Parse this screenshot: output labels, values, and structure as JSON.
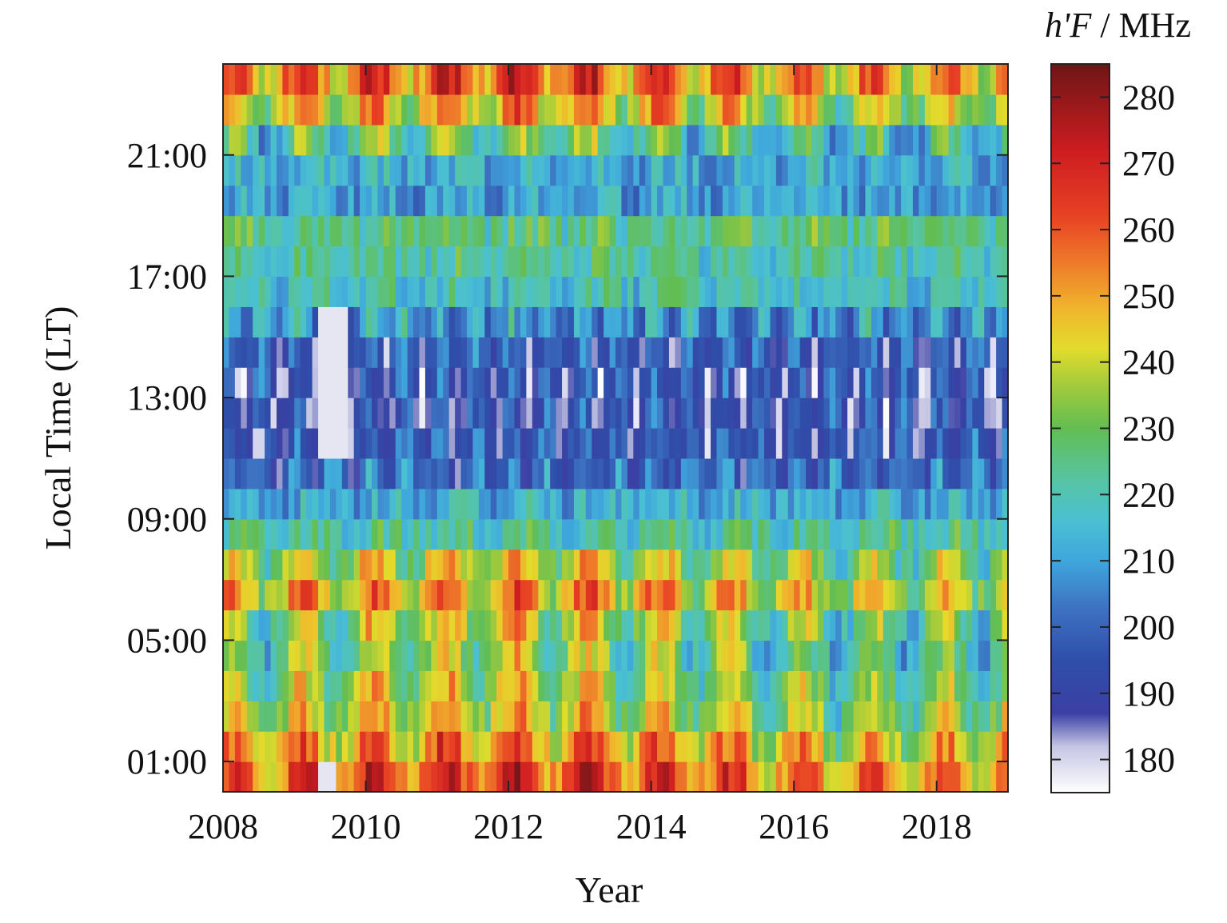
{
  "chart_data": {
    "type": "heatmap",
    "title": "",
    "xlabel": "Year",
    "ylabel": "Local Time (LT)",
    "colorbar_label": {
      "symbol": "h'F",
      "separator": " / ",
      "unit": "MHz"
    },
    "xlim": [
      2008,
      2019
    ],
    "ylim": [
      0,
      24
    ],
    "x_ticks": [
      2008,
      2010,
      2012,
      2014,
      2016,
      2018
    ],
    "y_ticks": [
      {
        "value": 1,
        "label": "01:00"
      },
      {
        "value": 5,
        "label": "05:00"
      },
      {
        "value": 9,
        "label": "09:00"
      },
      {
        "value": 13,
        "label": "13:00"
      },
      {
        "value": 17,
        "label": "17:00"
      },
      {
        "value": 21,
        "label": "21:00"
      }
    ],
    "colorbar": {
      "range": [
        175,
        285
      ],
      "ticks": [
        180,
        190,
        200,
        210,
        220,
        230,
        240,
        250,
        260,
        270,
        280
      ],
      "palette": [
        {
          "value": 175,
          "color": "#ffffff"
        },
        {
          "value": 182,
          "color": "#c4c4e4"
        },
        {
          "value": 187,
          "color": "#3a40a4"
        },
        {
          "value": 195,
          "color": "#2f4eaa"
        },
        {
          "value": 203,
          "color": "#3d73c2"
        },
        {
          "value": 210,
          "color": "#3fa6dc"
        },
        {
          "value": 216,
          "color": "#4ac0d2"
        },
        {
          "value": 222,
          "color": "#56c4a4"
        },
        {
          "value": 230,
          "color": "#62be52"
        },
        {
          "value": 237,
          "color": "#a8cc3a"
        },
        {
          "value": 242,
          "color": "#e2dc2c"
        },
        {
          "value": 248,
          "color": "#f0b62c"
        },
        {
          "value": 255,
          "color": "#ee7a2a"
        },
        {
          "value": 262,
          "color": "#e84224"
        },
        {
          "value": 272,
          "color": "#cc1c20"
        },
        {
          "value": 285,
          "color": "#6e1616"
        }
      ]
    },
    "grid": false,
    "x_step_months": 1,
    "hours": [
      0,
      1,
      2,
      3,
      4,
      5,
      6,
      7,
      8,
      9,
      10,
      11,
      12,
      13,
      14,
      15,
      16,
      17,
      18,
      19,
      20,
      21,
      22,
      23
    ],
    "hourly_base": [
      258,
      248,
      238,
      232,
      228,
      232,
      245,
      235,
      222,
      212,
      200,
      195,
      192,
      193,
      196,
      208,
      218,
      222,
      225,
      210,
      212,
      222,
      242,
      255
    ],
    "features": {
      "solar_cycle_amplitude": 6,
      "night_seasonal_amplitude": 14,
      "day_seasonal_amplitude": 9,
      "low_value_patches": [
        {
          "year_from": 2009.3,
          "year_to": 2009.75,
          "hour_from": 11,
          "hour_to": 16,
          "value": 178
        },
        {
          "year_from": 2009.3,
          "year_to": 2009.55,
          "hour_from": 0,
          "hour_to": 1,
          "value": 178
        },
        {
          "year_from": 2008.4,
          "year_to": 2008.55,
          "hour_from": 11,
          "hour_to": 12,
          "value": 180
        },
        {
          "year_from": 2018.6,
          "year_to": 2018.7,
          "hour_from": 13,
          "hour_to": 14,
          "value": 180
        }
      ]
    }
  }
}
